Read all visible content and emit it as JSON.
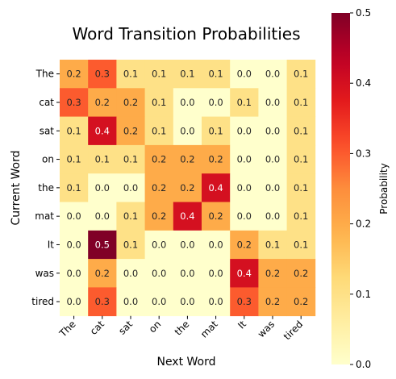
{
  "chart_data": {
    "type": "heatmap",
    "title": "Word Transition Probabilities",
    "xlabel": "Next Word",
    "ylabel": "Current Word",
    "x_categories": [
      "The",
      "cat",
      "sat",
      "on",
      "the",
      "mat",
      "It",
      "was",
      "tired"
    ],
    "y_categories": [
      "The",
      "cat",
      "sat",
      "on",
      "the",
      "mat",
      "It",
      "was",
      "tired"
    ],
    "values": [
      [
        0.2,
        0.3,
        0.1,
        0.1,
        0.1,
        0.1,
        0.0,
        0.0,
        0.1
      ],
      [
        0.3,
        0.2,
        0.2,
        0.1,
        0.0,
        0.0,
        0.1,
        0.0,
        0.1
      ],
      [
        0.1,
        0.4,
        0.2,
        0.1,
        0.0,
        0.1,
        0.0,
        0.0,
        0.1
      ],
      [
        0.1,
        0.1,
        0.1,
        0.2,
        0.2,
        0.2,
        0.0,
        0.0,
        0.1
      ],
      [
        0.1,
        0.0,
        0.0,
        0.2,
        0.2,
        0.4,
        0.0,
        0.0,
        0.1
      ],
      [
        0.0,
        0.0,
        0.1,
        0.2,
        0.4,
        0.2,
        0.0,
        0.0,
        0.1
      ],
      [
        0.0,
        0.5,
        0.1,
        0.0,
        0.0,
        0.0,
        0.2,
        0.1,
        0.1
      ],
      [
        0.0,
        0.2,
        0.0,
        0.0,
        0.0,
        0.0,
        0.4,
        0.2,
        0.2
      ],
      [
        0.0,
        0.3,
        0.0,
        0.0,
        0.0,
        0.0,
        0.3,
        0.2,
        0.2
      ]
    ],
    "colorbar": {
      "label": "Probability",
      "range": [
        0.0,
        0.5
      ],
      "ticks": [
        "0.0",
        "0.1",
        "0.2",
        "0.3",
        "0.4",
        "0.5"
      ],
      "colormap": "YlOrRd"
    },
    "grid": false,
    "legend": "colorbar-right"
  }
}
